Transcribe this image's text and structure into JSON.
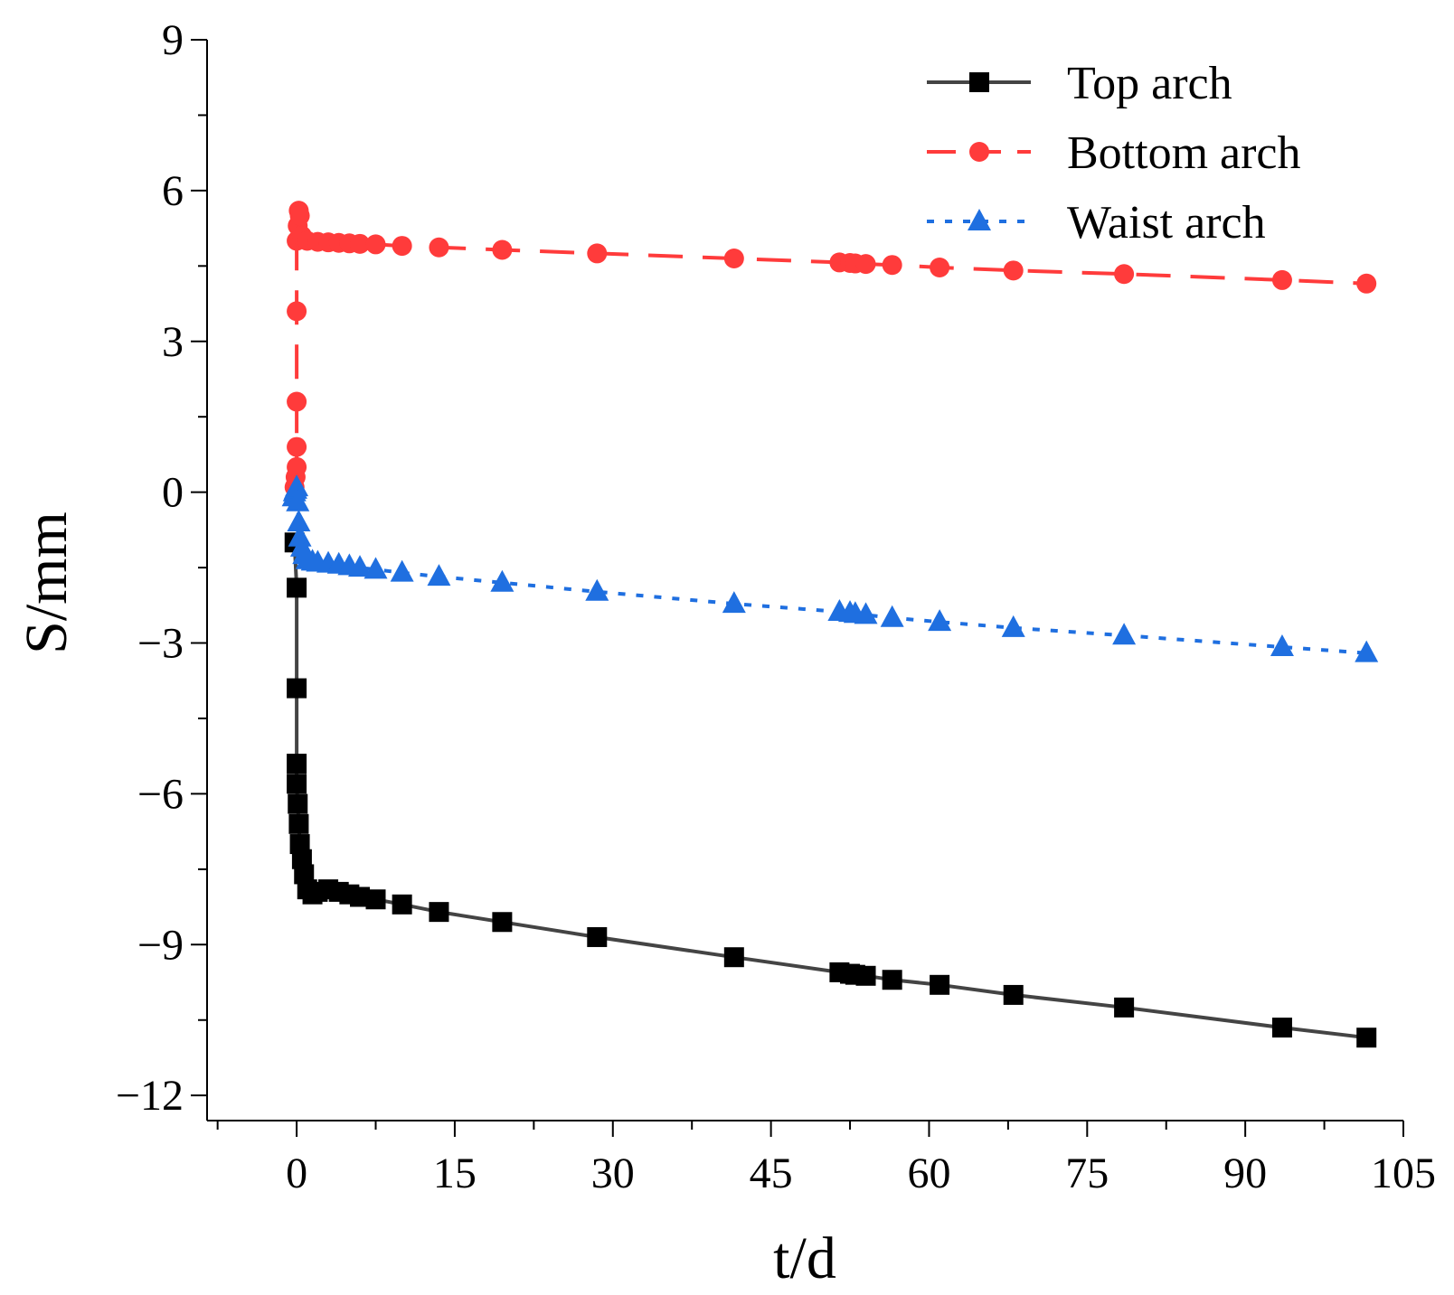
{
  "chart_data": {
    "type": "line",
    "title": "",
    "xlabel": "t/d",
    "ylabel": "S/mm",
    "xlim": [
      -8.5,
      105
    ],
    "ylim": [
      -12.5,
      9
    ],
    "xticks": [
      0,
      15,
      30,
      45,
      60,
      75,
      90,
      105
    ],
    "xtick_labels": [
      "0",
      "15",
      "30",
      "45",
      "60",
      "75",
      "90",
      "105"
    ],
    "yticks": [
      9,
      6,
      3,
      0,
      -3,
      -6,
      -9,
      -12
    ],
    "ytick_labels": [
      "9",
      "6",
      "3",
      "0",
      "−3",
      "−6",
      "−9",
      "−12"
    ],
    "grid": false,
    "legend_position": "top-right",
    "series": [
      {
        "name": "Top arch",
        "color": "#000000",
        "line_color": "#444444",
        "line_style": "solid",
        "marker": "square",
        "x": [
          -0.2,
          0,
          0,
          0,
          0,
          0.1,
          0.2,
          0.3,
          0.5,
          0.7,
          1,
          1.5,
          2,
          3,
          4,
          5,
          6,
          7.5,
          10,
          13.5,
          19.5,
          28.5,
          41.5,
          51.5,
          52.5,
          53,
          54,
          56.5,
          61,
          68,
          78.5,
          93.5,
          101.5
        ],
        "y": [
          -1.0,
          -1.9,
          -3.9,
          -5.4,
          -5.8,
          -6.2,
          -6.6,
          -7.0,
          -7.3,
          -7.6,
          -7.9,
          -8.0,
          -7.95,
          -7.9,
          -7.95,
          -8.0,
          -8.05,
          -8.1,
          -8.2,
          -8.35,
          -8.55,
          -8.85,
          -9.25,
          -9.55,
          -9.58,
          -9.6,
          -9.62,
          -9.7,
          -9.8,
          -10.0,
          -10.25,
          -10.65,
          -10.85
        ]
      },
      {
        "name": "Bottom arch",
        "color": "#ff3b3b",
        "line_color": "#ff3b3b",
        "line_style": "dashed",
        "marker": "circle",
        "x": [
          -0.2,
          -0.1,
          0,
          0,
          0,
          0,
          0,
          0.1,
          0.2,
          0.3,
          0.5,
          1,
          2,
          3,
          4,
          5,
          6,
          7.5,
          10,
          13.5,
          19.5,
          28.5,
          41.5,
          51.5,
          52.5,
          53,
          54,
          56.5,
          61,
          68,
          78.5,
          93.5,
          101.5
        ],
        "y": [
          0.1,
          0.3,
          0.5,
          0.9,
          1.8,
          3.6,
          5.0,
          5.3,
          5.6,
          5.5,
          5.1,
          5.0,
          4.98,
          4.97,
          4.96,
          4.95,
          4.94,
          4.93,
          4.9,
          4.87,
          4.82,
          4.75,
          4.65,
          4.57,
          4.56,
          4.55,
          4.54,
          4.52,
          4.47,
          4.41,
          4.34,
          4.22,
          4.15
        ]
      },
      {
        "name": "Waist arch",
        "color": "#1f6fe0",
        "line_color": "#1f6fe0",
        "line_style": "dotted",
        "marker": "triangle",
        "x": [
          -0.3,
          -0.2,
          -0.1,
          0,
          0.1,
          0.2,
          0.3,
          0.5,
          0.7,
          1,
          1.5,
          2,
          3,
          4,
          5,
          6,
          7.5,
          10,
          13.5,
          19.5,
          28.5,
          41.5,
          51.5,
          52.5,
          53,
          54,
          56.5,
          61,
          68,
          78.5,
          93.5,
          101.5
        ],
        "y": [
          -0.1,
          0,
          0.05,
          0.1,
          -0.2,
          -0.6,
          -0.9,
          -1.1,
          -1.25,
          -1.35,
          -1.38,
          -1.4,
          -1.42,
          -1.44,
          -1.47,
          -1.5,
          -1.54,
          -1.6,
          -1.68,
          -1.8,
          -1.98,
          -2.22,
          -2.38,
          -2.4,
          -2.42,
          -2.44,
          -2.5,
          -2.58,
          -2.7,
          -2.85,
          -3.08,
          -3.2
        ]
      }
    ]
  }
}
